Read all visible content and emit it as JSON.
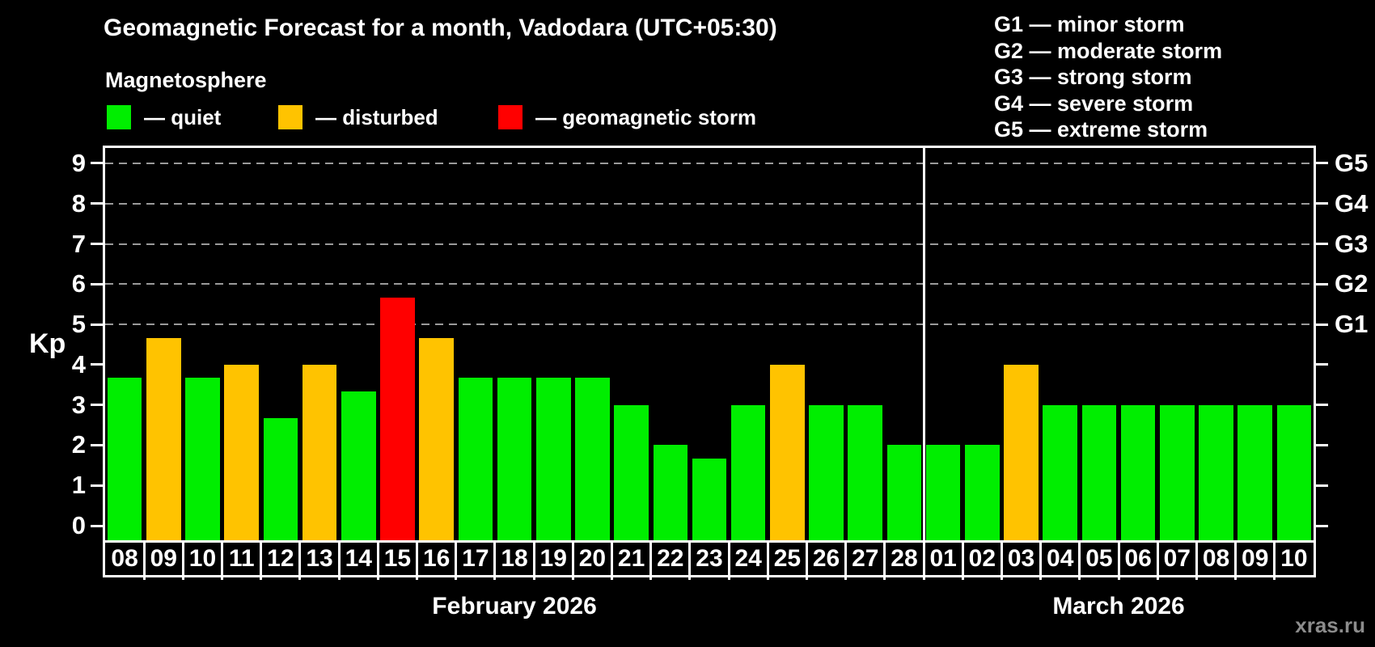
{
  "header": {
    "title": "Geomagnetic Forecast for a month, Vadodara (UTC+05:30)",
    "subtitle": "Magnetosphere"
  },
  "legend": {
    "items": [
      {
        "key": "quiet",
        "label": "— quiet",
        "color": "#00EE00"
      },
      {
        "key": "disturbed",
        "label": "— disturbed",
        "color": "#FFC300"
      },
      {
        "key": "storm",
        "label": "— geomagnetic storm",
        "color": "#FF0000"
      }
    ]
  },
  "storm_scale_legend": {
    "items": [
      "G1 — minor storm",
      "G2 — moderate storm",
      "G3 — strong storm",
      "G4 — severe storm",
      "G5 — extreme storm"
    ]
  },
  "watermark": "xras.ru",
  "chart_data": {
    "type": "bar",
    "ylabel": "Kp",
    "ylim": [
      0,
      9
    ],
    "yticks": [
      0,
      1,
      2,
      3,
      4,
      5,
      6,
      7,
      8,
      9
    ],
    "grid": "dashed horizontal lines at Kp 5,6,7,8,9 (G1–G5 levels)",
    "legend_position": "top",
    "right_axis": [
      {
        "kp": 5,
        "label": "G1"
      },
      {
        "kp": 6,
        "label": "G2"
      },
      {
        "kp": 7,
        "label": "G3"
      },
      {
        "kp": 8,
        "label": "G4"
      },
      {
        "kp": 9,
        "label": "G5"
      }
    ],
    "months": [
      {
        "label": "February 2026",
        "bars": [
          {
            "day": "08",
            "kp": 3.67,
            "status": "quiet"
          },
          {
            "day": "09",
            "kp": 4.67,
            "status": "disturbed"
          },
          {
            "day": "10",
            "kp": 3.67,
            "status": "quiet"
          },
          {
            "day": "11",
            "kp": 4.0,
            "status": "disturbed"
          },
          {
            "day": "12",
            "kp": 2.67,
            "status": "quiet"
          },
          {
            "day": "13",
            "kp": 4.0,
            "status": "disturbed"
          },
          {
            "day": "14",
            "kp": 3.33,
            "status": "quiet"
          },
          {
            "day": "15",
            "kp": 5.67,
            "status": "storm"
          },
          {
            "day": "16",
            "kp": 4.67,
            "status": "disturbed"
          },
          {
            "day": "17",
            "kp": 3.67,
            "status": "quiet"
          },
          {
            "day": "18",
            "kp": 3.67,
            "status": "quiet"
          },
          {
            "day": "19",
            "kp": 3.67,
            "status": "quiet"
          },
          {
            "day": "20",
            "kp": 3.67,
            "status": "quiet"
          },
          {
            "day": "21",
            "kp": 3.0,
            "status": "quiet"
          },
          {
            "day": "22",
            "kp": 2.0,
            "status": "quiet"
          },
          {
            "day": "23",
            "kp": 1.67,
            "status": "quiet"
          },
          {
            "day": "24",
            "kp": 3.0,
            "status": "quiet"
          },
          {
            "day": "25",
            "kp": 4.0,
            "status": "disturbed"
          },
          {
            "day": "26",
            "kp": 3.0,
            "status": "quiet"
          },
          {
            "day": "27",
            "kp": 3.0,
            "status": "quiet"
          },
          {
            "day": "28",
            "kp": 2.0,
            "status": "quiet"
          }
        ]
      },
      {
        "label": "March 2026",
        "bars": [
          {
            "day": "01",
            "kp": 2.0,
            "status": "quiet"
          },
          {
            "day": "02",
            "kp": 2.0,
            "status": "quiet"
          },
          {
            "day": "03",
            "kp": 4.0,
            "status": "disturbed"
          },
          {
            "day": "04",
            "kp": 3.0,
            "status": "quiet"
          },
          {
            "day": "05",
            "kp": 3.0,
            "status": "quiet"
          },
          {
            "day": "06",
            "kp": 3.0,
            "status": "quiet"
          },
          {
            "day": "07",
            "kp": 3.0,
            "status": "quiet"
          },
          {
            "day": "08",
            "kp": 3.0,
            "status": "quiet"
          },
          {
            "day": "09",
            "kp": 3.0,
            "status": "quiet"
          },
          {
            "day": "10",
            "kp": 3.0,
            "status": "quiet"
          }
        ]
      }
    ]
  }
}
